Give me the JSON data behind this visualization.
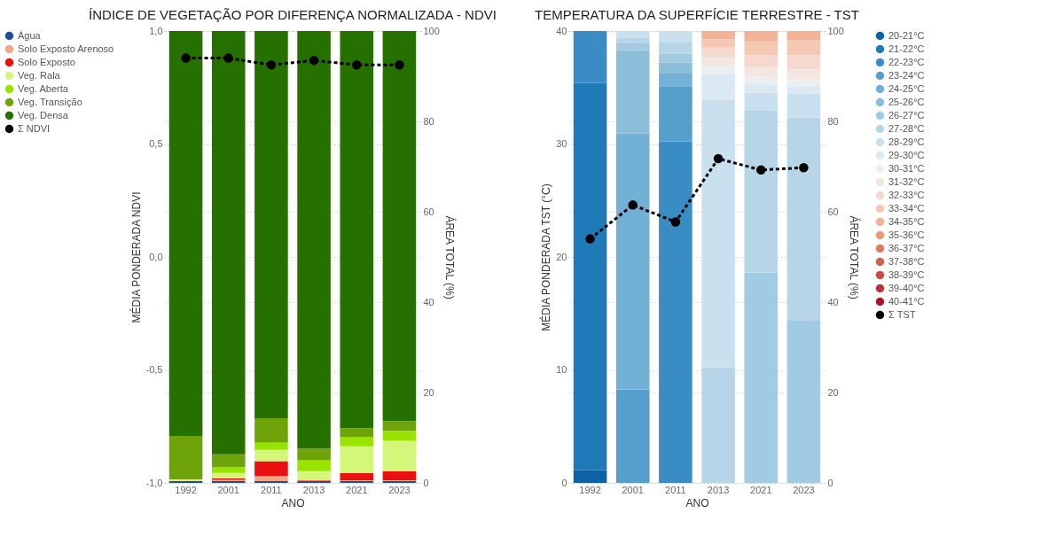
{
  "chart_data": [
    {
      "type": "bar",
      "title": "ÍNDICE DE VEGETAÇÃO POR DIFERENÇA NORMALIZADA - NDVI",
      "xlabel": "ANO",
      "ylabel": "MÉDIA PONDERADA NDVI",
      "y2label": "ÁREA TOTAL (%)",
      "categories": [
        "1992",
        "2001",
        "2011",
        "2013",
        "2021",
        "2023"
      ],
      "stacked": true,
      "grid": true,
      "legend": "left",
      "ylim": [
        -1,
        1
      ],
      "yticks": [
        {
          "value": -1,
          "label": "-1,0"
        },
        {
          "value": -0.5,
          "label": "-0,5"
        },
        {
          "value": 0,
          "label": "0,0"
        },
        {
          "value": 0.5,
          "label": "0,5"
        },
        {
          "value": 1,
          "label": "1,0"
        }
      ],
      "y2lim": [
        0,
        100
      ],
      "y2ticks": [
        0,
        20,
        40,
        60,
        80,
        100
      ],
      "series": [
        {
          "name": "Água",
          "color": "#1f4e9c",
          "axis": "y2",
          "values": [
            0.4,
            0.4,
            0.4,
            0.4,
            0.4,
            0.4
          ]
        },
        {
          "name": "Solo Exposto Arenoso",
          "color": "#f4a582",
          "axis": "y2",
          "values": [
            0.1,
            0.3,
            1.1,
            0.1,
            0.2,
            0.2
          ]
        },
        {
          "name": "Solo Exposto",
          "color": "#e81010",
          "axis": "y2",
          "values": [
            0,
            0.3,
            3.3,
            0.1,
            1.6,
            2.0
          ]
        },
        {
          "name": "Veg. Rala",
          "color": "#d4f77a",
          "axis": "y2",
          "values": [
            0.3,
            1.2,
            2.5,
            2.0,
            5.9,
            6.7
          ]
        },
        {
          "name": "Veg. Aberta",
          "color": "#99e300",
          "axis": "y2",
          "values": [
            0,
            1.3,
            1.6,
            2.4,
            2.0,
            2.2
          ]
        },
        {
          "name": "Veg. Transição",
          "color": "#6fa30a",
          "axis": "y2",
          "values": [
            9.6,
            2.8,
            5.4,
            2.6,
            2.0,
            2.2
          ]
        },
        {
          "name": "Veg. Densa",
          "color": "#267000",
          "axis": "y2",
          "values": [
            89.6,
            93.7,
            85.7,
            92.4,
            87.9,
            86.3
          ]
        },
        {
          "name": "Σ NDVI",
          "type": "line",
          "color": "#000000",
          "axis": "y",
          "line_style": "dashed",
          "marker": "circle",
          "values": [
            0.88,
            0.88,
            0.85,
            0.87,
            0.85,
            0.85
          ]
        }
      ]
    },
    {
      "type": "bar",
      "title": "TEMPERATURA DA SUPERFÍCIE TERRESTRE - TST",
      "xlabel": "ANO",
      "ylabel": "MÉDIA PONDERADA TST (°C)",
      "y2label": "ÁREA TOTAL (%)",
      "categories": [
        "1992",
        "2001",
        "2011",
        "2013",
        "2021",
        "2023"
      ],
      "stacked": true,
      "grid": true,
      "legend": "right",
      "ylim": [
        0,
        40
      ],
      "yticks": [
        0,
        10,
        20,
        30,
        40
      ],
      "y2lim": [
        0,
        100
      ],
      "y2ticks": [
        0,
        20,
        40,
        60,
        80,
        100
      ],
      "series": [
        {
          "name": "20-21°C",
          "color": "#0b62a4",
          "axis": "y2",
          "values": [
            2.8,
            0,
            0,
            0,
            0,
            0
          ]
        },
        {
          "name": "21-22°C",
          "color": "#1f7ab8",
          "axis": "y2",
          "values": [
            85.7,
            0,
            0,
            0,
            0,
            0
          ]
        },
        {
          "name": "22-23°C",
          "color": "#3a8cc4",
          "axis": "y2",
          "values": [
            11.5,
            0,
            75.6,
            0,
            0,
            0
          ]
        },
        {
          "name": "23-24°C",
          "color": "#569fcd",
          "axis": "y2",
          "values": [
            0,
            20.7,
            12.2,
            0,
            0,
            0
          ]
        },
        {
          "name": "24-25°C",
          "color": "#73b0d6",
          "axis": "y2",
          "values": [
            0,
            56.6,
            2.8,
            0,
            0,
            0
          ]
        },
        {
          "name": "25-26°C",
          "color": "#8abed9",
          "axis": "y2",
          "values": [
            0,
            18.5,
            2.4,
            0,
            0,
            0
          ]
        },
        {
          "name": "26-27°C",
          "color": "#a0cbe2",
          "axis": "y2",
          "values": [
            0,
            1.6,
            2.0,
            0,
            46.5,
            35.9
          ]
        },
        {
          "name": "27-28°C",
          "color": "#b6d6e8",
          "axis": "y2",
          "values": [
            0,
            1.1,
            2.6,
            25.6,
            36.0,
            45.0
          ]
        },
        {
          "name": "28-29°C",
          "color": "#c9e0ee",
          "axis": "y2",
          "values": [
            0,
            1.5,
            2.4,
            59.2,
            3.8,
            5.2
          ]
        },
        {
          "name": "29-30°C",
          "color": "#dbe9f2",
          "axis": "y2",
          "values": [
            0,
            0,
            0,
            5.6,
            1.9,
            1.7
          ]
        },
        {
          "name": "30-31°C",
          "color": "#ebeff2",
          "axis": "y2",
          "values": [
            0,
            0,
            0,
            1.9,
            1.7,
            1.6
          ]
        },
        {
          "name": "31-32°C",
          "color": "#f3e6e1",
          "axis": "y2",
          "values": [
            0,
            0,
            0,
            2.0,
            2.0,
            2.1
          ]
        },
        {
          "name": "32-33°C",
          "color": "#f6d9ce",
          "axis": "y2",
          "values": [
            0,
            0,
            0,
            2.0,
            2.7,
            3.1
          ]
        },
        {
          "name": "33-34°C",
          "color": "#f5c8b3",
          "axis": "y2",
          "values": [
            0,
            0,
            0,
            1.9,
            3.1,
            3.4
          ]
        },
        {
          "name": "34-35°C",
          "color": "#f2b396",
          "axis": "y2",
          "values": [
            0,
            0,
            0,
            1.8,
            2.3,
            2.0
          ]
        },
        {
          "name": "35-36°C",
          "color": "#eb9b7a",
          "axis": "y2",
          "values": [
            0,
            0,
            0,
            0,
            0,
            0
          ]
        },
        {
          "name": "36-37°C",
          "color": "#de7c62",
          "axis": "y2",
          "values": [
            0,
            0,
            0,
            0,
            0,
            0
          ]
        },
        {
          "name": "37-38°C",
          "color": "#d0614f",
          "axis": "y2",
          "values": [
            0,
            0,
            0,
            0,
            0,
            0
          ]
        },
        {
          "name": "38-39°C",
          "color": "#c44a45",
          "axis": "y2",
          "values": [
            0,
            0,
            0,
            0,
            0,
            0
          ]
        },
        {
          "name": "39-40°C",
          "color": "#b8303a",
          "axis": "y2",
          "values": [
            0,
            0,
            0,
            0,
            0,
            0
          ]
        },
        {
          "name": "40-41°C",
          "color": "#a8182c",
          "axis": "y2",
          "values": [
            0,
            0,
            0,
            0,
            0,
            0
          ]
        },
        {
          "name": "Σ TST",
          "type": "line",
          "color": "#000000",
          "axis": "y",
          "line_style": "dashed",
          "marker": "circle",
          "values": [
            21.6,
            24.6,
            23.1,
            28.7,
            27.7,
            27.9
          ]
        }
      ]
    }
  ]
}
